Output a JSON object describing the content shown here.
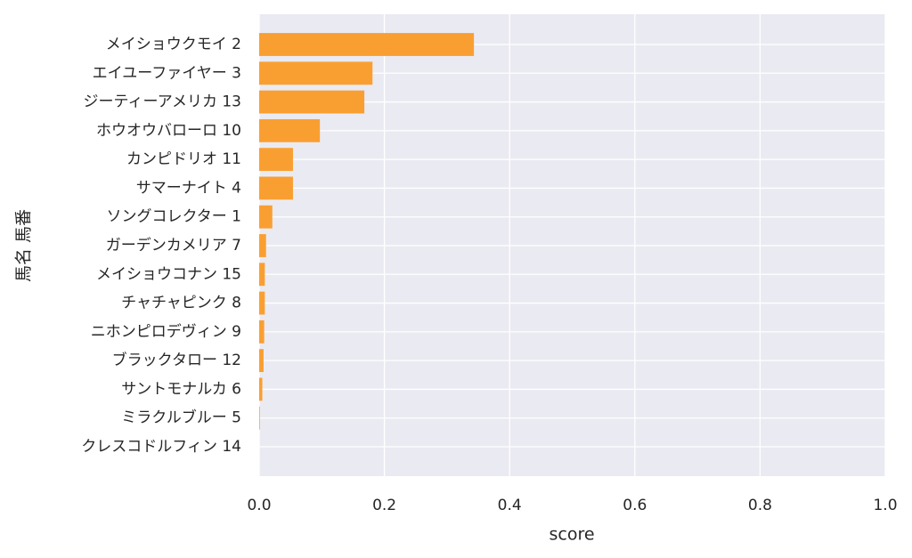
{
  "chart_data": {
    "type": "barh",
    "xlabel": "score",
    "ylabel": "馬名 馬番",
    "categories": [
      "メイショウクモイ 2",
      "エイユーファイヤー 3",
      "ジーティーアメリカ 13",
      "ホウオウバローロ 10",
      "カンピドリオ 11",
      "サマーナイト 4",
      "ソングコレクター 1",
      "ガーデンカメリア 7",
      "メイショウコナン 15",
      "チャチャピンク 8",
      "ニホンピロデヴィン 9",
      "ブラックタロー 12",
      "サントモナルカ 6",
      "ミラクルブルー 5",
      "クレスコドルフィン 14"
    ],
    "values": [
      0.343,
      0.181,
      0.168,
      0.097,
      0.054,
      0.054,
      0.021,
      0.011,
      0.009,
      0.009,
      0.008,
      0.007,
      0.005,
      0.001,
      0.0
    ],
    "color": "#f99f32",
    "xlim": [
      0,
      1
    ],
    "xticks": [
      {
        "value": 0,
        "label": "0.0"
      },
      0.2,
      0.4,
      0.6,
      0.8,
      {
        "value": 1,
        "label": "1.0"
      }
    ],
    "grid": true
  }
}
